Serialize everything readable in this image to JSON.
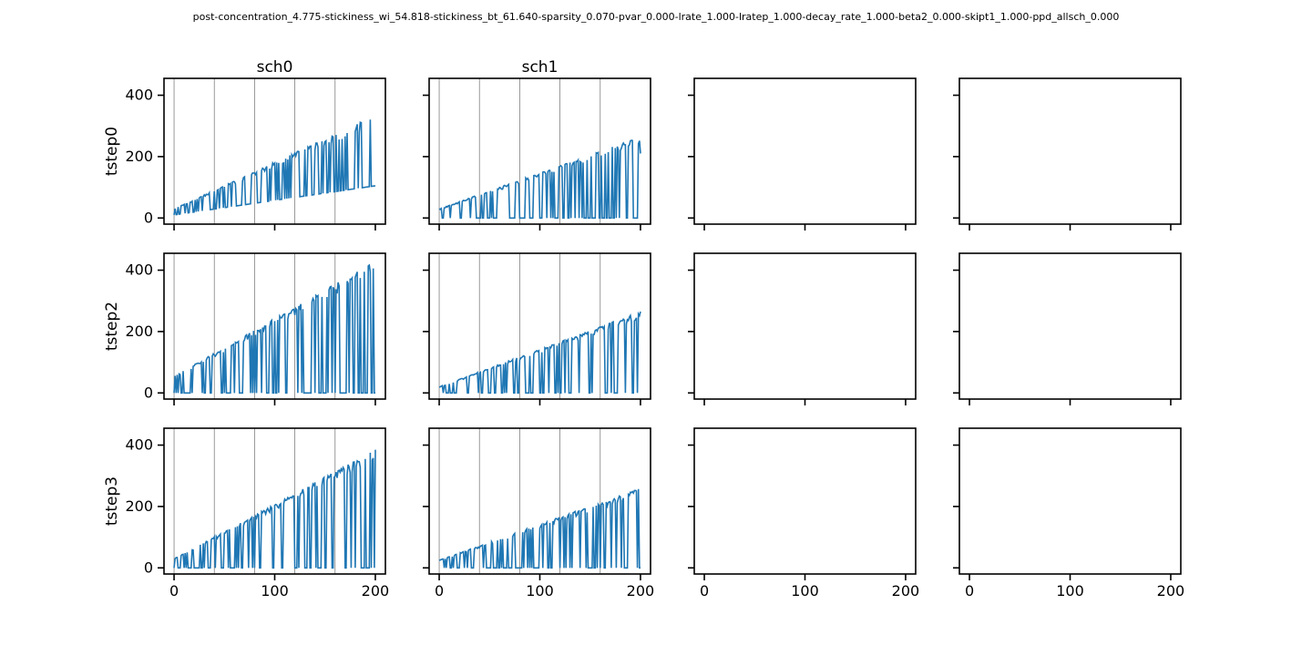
{
  "figure": {
    "title": "post-concentration_4.775-stickiness_wi_54.818-stickiness_bt_61.640-sparsity_0.070-pvar_0.000-lrate_1.000-lratep_1.000-decay_rate_1.000-beta2_0.000-skipt1_1.000-ppd_allsch_0.000",
    "line_color": "#1f77b4",
    "vline_color": "#808080"
  },
  "chart_data": {
    "type": "line",
    "grid": "3 rows x 4 columns of subplots, shared x and y axes",
    "column_titles": [
      "sch0",
      "sch1",
      "",
      ""
    ],
    "row_labels": [
      "tstep0",
      "tstep2",
      "tstep3"
    ],
    "xlim": [
      -10,
      210
    ],
    "ylim": [
      -20,
      455
    ],
    "x_ticks": [
      0,
      100,
      200
    ],
    "y_ticks": [
      0,
      200,
      400
    ],
    "vertical_lines_x": [
      0,
      40,
      80,
      120,
      160
    ],
    "panels": [
      {
        "row": 0,
        "col": 0,
        "series": [
          {
            "x_range": [
              0,
              200
            ],
            "baseline_start": 10,
            "baseline_end": 105,
            "peak_start": 30,
            "peak_end": 335,
            "last_value": 105,
            "description": "sawtooth oscillation between rising baseline and rising peak"
          }
        ]
      },
      {
        "row": 0,
        "col": 1,
        "series": [
          {
            "x_range": [
              0,
              200
            ],
            "baseline_start": 0,
            "baseline_end": 0,
            "peak_start": 30,
            "peak_end": 265,
            "last_value": 210
          }
        ]
      },
      {
        "row": 1,
        "col": 0,
        "series": [
          {
            "x_range": [
              0,
              200
            ],
            "baseline_start": 0,
            "baseline_end": 0,
            "peak_start": 55,
            "peak_end": 430,
            "last_value": 0
          }
        ]
      },
      {
        "row": 1,
        "col": 1,
        "series": [
          {
            "x_range": [
              0,
              200
            ],
            "baseline_start": 0,
            "baseline_end": 0,
            "peak_start": 20,
            "peak_end": 265,
            "last_value": 265
          }
        ]
      },
      {
        "row": 2,
        "col": 0,
        "series": [
          {
            "x_range": [
              0,
              200
            ],
            "baseline_start": 0,
            "baseline_end": 0,
            "peak_start": 30,
            "peak_end": 385,
            "last_value": 385
          }
        ]
      },
      {
        "row": 2,
        "col": 1,
        "series": [
          {
            "x_range": [
              0,
              200
            ],
            "baseline_start": 0,
            "baseline_end": 0,
            "peak_start": 25,
            "peak_end": 260,
            "last_value": 0
          }
        ]
      },
      {
        "row": 0,
        "col": 2,
        "series": []
      },
      {
        "row": 0,
        "col": 3,
        "series": []
      },
      {
        "row": 1,
        "col": 2,
        "series": []
      },
      {
        "row": 1,
        "col": 3,
        "series": []
      },
      {
        "row": 2,
        "col": 2,
        "series": []
      },
      {
        "row": 2,
        "col": 3,
        "series": []
      }
    ]
  }
}
